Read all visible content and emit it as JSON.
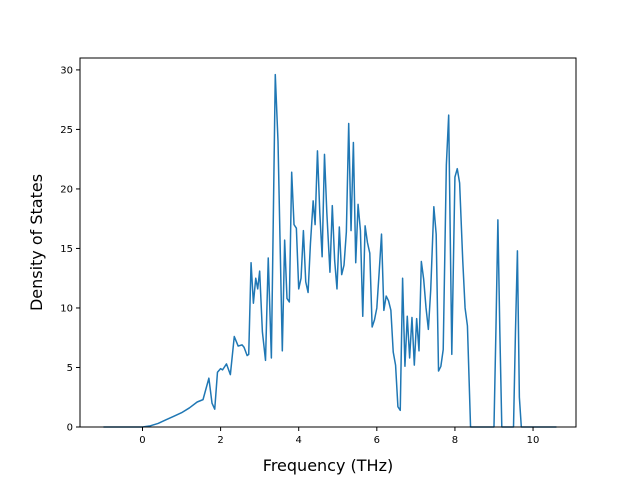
{
  "chart_data": {
    "type": "line",
    "title": "",
    "xlabel": "Frequency (THz)",
    "ylabel": "Density of States",
    "xlim": [
      -1.6,
      11.1
    ],
    "ylim": [
      0,
      31
    ],
    "xticks": [
      0,
      2,
      4,
      6,
      8,
      10
    ],
    "yticks": [
      0,
      5,
      10,
      15,
      20,
      25,
      30
    ],
    "grid": false,
    "legend": "none",
    "line_color": "#1f77b4",
    "series": [
      {
        "name": "",
        "x": [
          -1.0,
          -0.5,
          0.0,
          0.2,
          0.4,
          0.6,
          0.8,
          1.0,
          1.2,
          1.4,
          1.55,
          1.7,
          1.78,
          1.85,
          1.92,
          2.0,
          2.05,
          2.15,
          2.25,
          2.35,
          2.45,
          2.55,
          2.6,
          2.68,
          2.72,
          2.78,
          2.84,
          2.9,
          2.95,
          3.0,
          3.07,
          3.15,
          3.22,
          3.3,
          3.4,
          3.47,
          3.52,
          3.58,
          3.64,
          3.7,
          3.76,
          3.82,
          3.88,
          3.94,
          4.0,
          4.06,
          4.12,
          4.18,
          4.24,
          4.3,
          4.37,
          4.42,
          4.48,
          4.54,
          4.6,
          4.66,
          4.72,
          4.8,
          4.86,
          4.92,
          4.98,
          5.04,
          5.1,
          5.16,
          5.22,
          5.28,
          5.34,
          5.4,
          5.46,
          5.52,
          5.58,
          5.64,
          5.7,
          5.76,
          5.82,
          5.88,
          5.94,
          6.0,
          6.06,
          6.12,
          6.18,
          6.24,
          6.3,
          6.36,
          6.42,
          6.48,
          6.54,
          6.6,
          6.66,
          6.72,
          6.78,
          6.84,
          6.9,
          6.96,
          7.02,
          7.08,
          7.14,
          7.2,
          7.26,
          7.32,
          7.38,
          7.46,
          7.52,
          7.58,
          7.64,
          7.7,
          7.78,
          7.84,
          7.92,
          8.0,
          8.06,
          8.12,
          8.2,
          8.26,
          8.32,
          8.4,
          8.7,
          9.0,
          9.05,
          9.1,
          9.15,
          9.2,
          9.4,
          9.5,
          9.55,
          9.6,
          9.65,
          9.7,
          10.0,
          10.6
        ],
        "values": [
          0.0,
          0.0,
          0.0,
          0.1,
          0.3,
          0.6,
          0.9,
          1.2,
          1.6,
          2.1,
          2.3,
          4.1,
          2.0,
          1.5,
          4.6,
          4.9,
          4.8,
          5.3,
          4.4,
          7.6,
          6.8,
          6.9,
          6.7,
          6.0,
          6.1,
          13.8,
          10.4,
          12.5,
          11.6,
          13.1,
          8.0,
          5.6,
          14.2,
          5.8,
          29.6,
          24.0,
          16.0,
          6.4,
          15.7,
          10.8,
          10.5,
          21.4,
          17.0,
          16.7,
          11.6,
          12.5,
          16.5,
          12.2,
          11.3,
          15.4,
          19.0,
          17.0,
          23.2,
          18.0,
          14.3,
          22.9,
          18.0,
          13.0,
          18.6,
          14.0,
          11.6,
          16.8,
          12.8,
          13.6,
          16.4,
          25.5,
          16.5,
          23.9,
          13.8,
          18.7,
          16.5,
          9.3,
          16.9,
          15.5,
          14.6,
          8.4,
          9.0,
          10.0,
          13.0,
          16.2,
          9.8,
          11.0,
          10.6,
          9.8,
          6.3,
          5.2,
          1.7,
          1.4,
          12.5,
          5.1,
          9.3,
          5.8,
          9.2,
          5.2,
          9.1,
          6.4,
          13.9,
          12.4,
          10.0,
          8.2,
          11.5,
          18.5,
          16.2,
          4.7,
          5.1,
          6.5,
          22.0,
          26.2,
          6.1,
          21.0,
          21.7,
          20.5,
          14.0,
          10.0,
          8.5,
          0.0,
          0.0,
          0.0,
          8.2,
          17.4,
          8.0,
          0.0,
          0.0,
          0.0,
          8.0,
          14.8,
          2.5,
          0.0,
          0.0,
          0.0
        ]
      }
    ]
  }
}
